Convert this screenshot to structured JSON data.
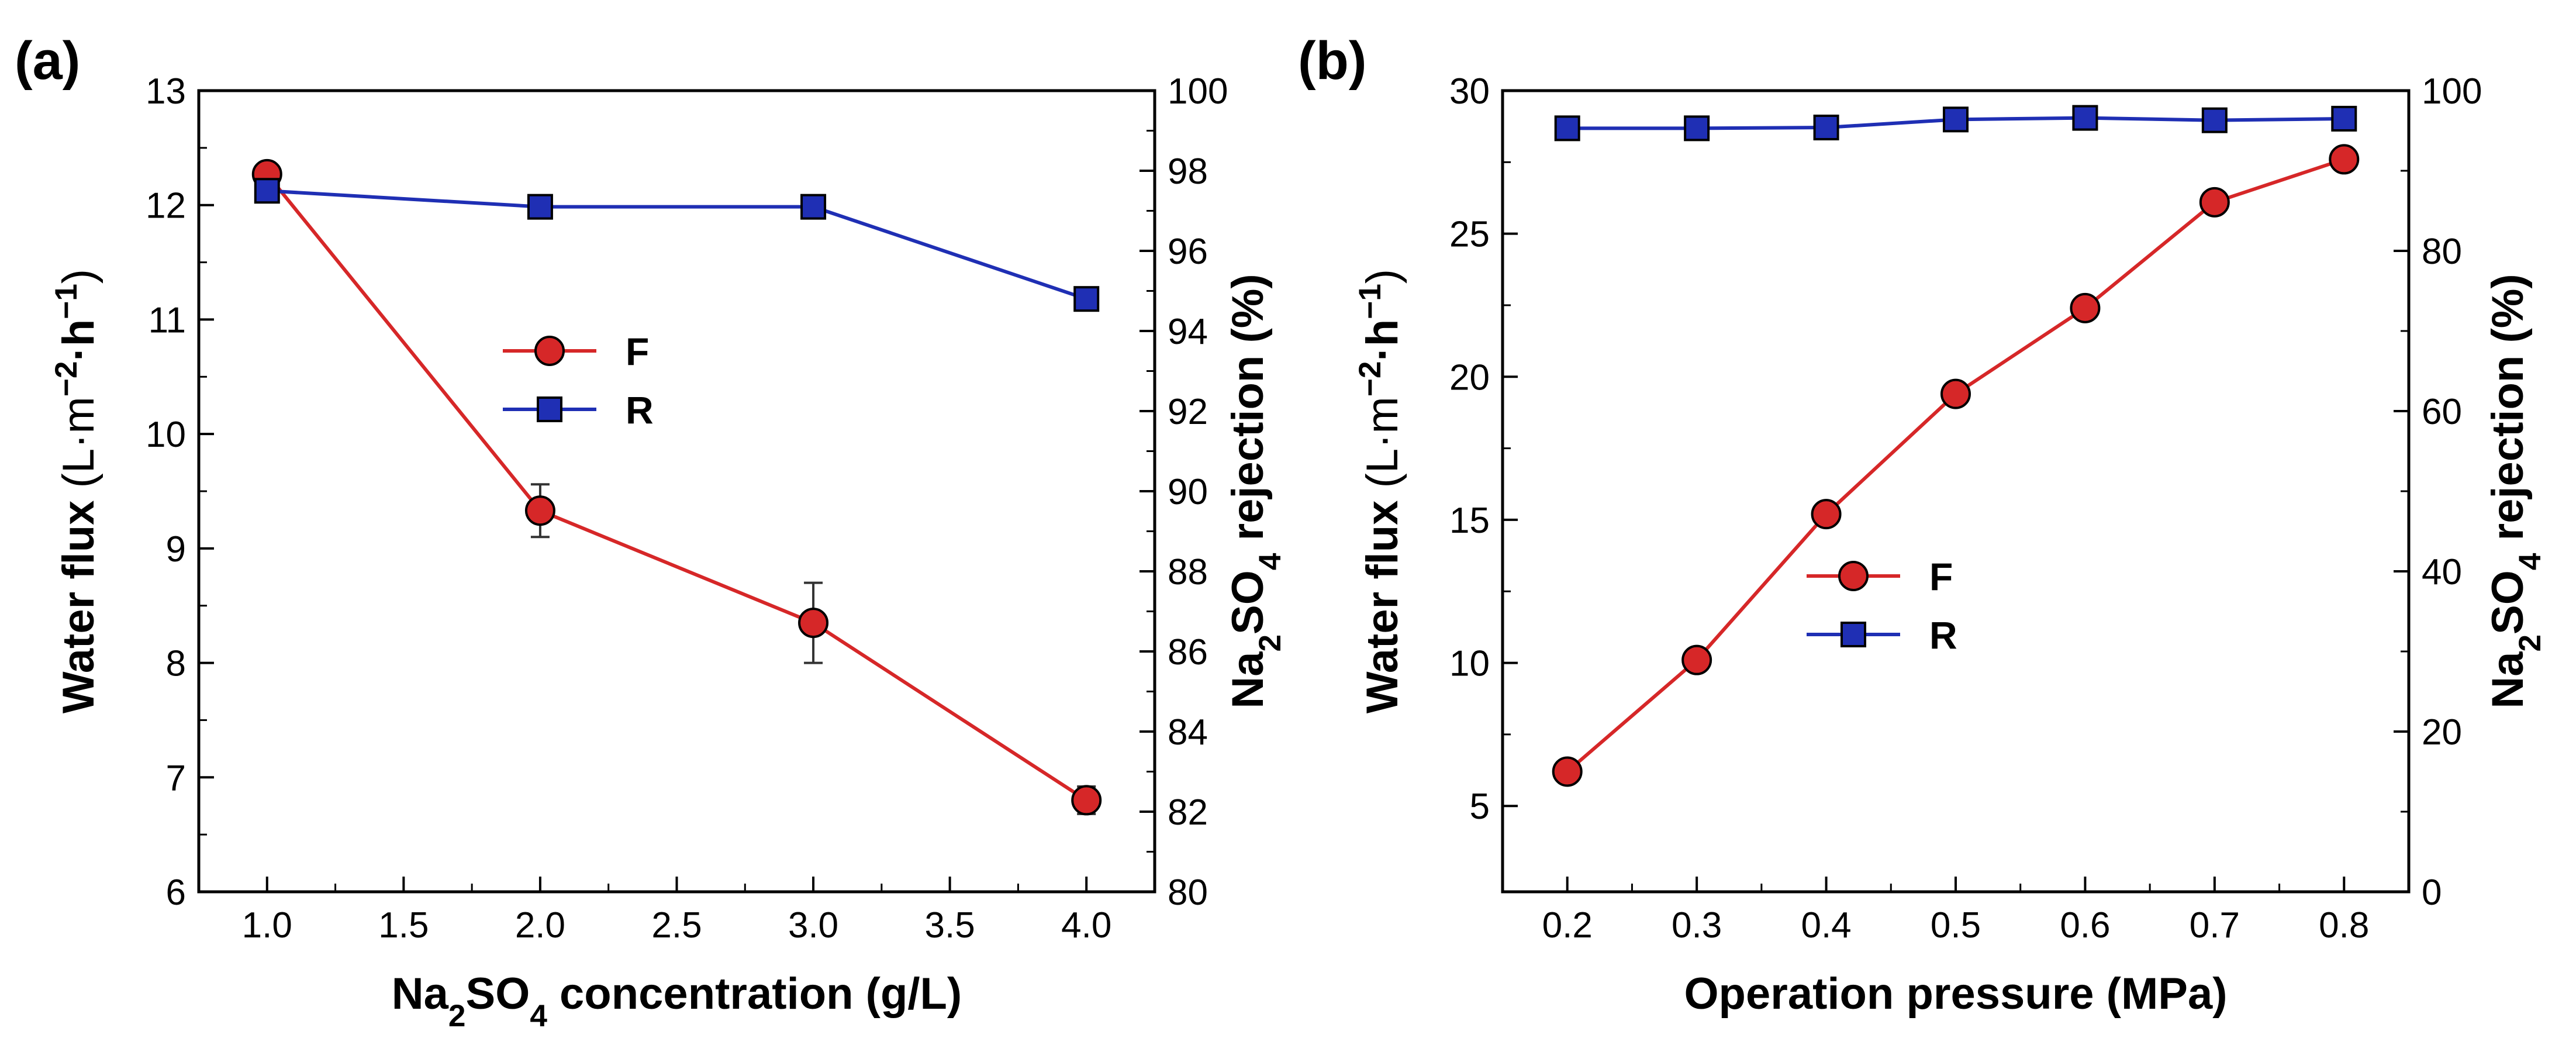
{
  "chart_data": [
    {
      "type": "line",
      "panel_label": "(a)",
      "xlabel": {
        "pre": "Na",
        "sub1": "2",
        "mid": "SO",
        "sub2": "4",
        "post": " concentration (g/L)"
      },
      "ylabel_left": {
        "text": "Water flux",
        "unit": "(L·m",
        "sup1": "−2",
        "mid": "·h",
        "sup2": "−1",
        "close": ")"
      },
      "ylabel_right": {
        "pre": "Na",
        "sub1": "2",
        "mid": "SO",
        "sub2": "4",
        "post": " rejection (%)"
      },
      "xlim": [
        0.75,
        4.25
      ],
      "xticks": [
        1.0,
        1.5,
        2.0,
        2.5,
        3.0,
        3.5,
        4.0
      ],
      "xtick_labels": [
        "1.0",
        "1.5",
        "2.0",
        "2.5",
        "3.0",
        "3.5",
        "4.0"
      ],
      "ylim_left": [
        6,
        13
      ],
      "yticks_left": [
        6,
        7,
        8,
        9,
        10,
        11,
        12,
        13
      ],
      "ytick_labels_left": [
        "6",
        "7",
        "8",
        "9",
        "10",
        "11",
        "12",
        "13"
      ],
      "ylim_right": [
        80,
        100
      ],
      "yticks_right": [
        80,
        82,
        84,
        86,
        88,
        90,
        92,
        94,
        96,
        98,
        100
      ],
      "ytick_labels_right": [
        "80",
        "82",
        "84",
        "86",
        "88",
        "90",
        "92",
        "94",
        "96",
        "98",
        "100"
      ],
      "legend_position": "center-left",
      "series": [
        {
          "name": "F",
          "axis": "left",
          "color": "#d62728",
          "marker": "circle",
          "x": [
            1.0,
            2.0,
            3.0,
            4.0
          ],
          "values": [
            12.27,
            9.33,
            8.35,
            6.8
          ],
          "error": [
            0.08,
            0.23,
            0.35,
            0.12
          ]
        },
        {
          "name": "R",
          "axis": "right",
          "color": "#1f2fb4",
          "marker": "square",
          "x": [
            1.0,
            2.0,
            3.0,
            4.0
          ],
          "values": [
            97.5,
            97.1,
            97.1,
            94.8
          ]
        }
      ]
    },
    {
      "type": "line",
      "panel_label": "(b)",
      "xlabel": {
        "pre": "Operation pressure (MPa)",
        "sub1": "",
        "mid": "",
        "sub2": "",
        "post": ""
      },
      "ylabel_left": {
        "text": "Water flux",
        "unit": "(L·m",
        "sup1": "−2",
        "mid": "·h",
        "sup2": "−1",
        "close": ")"
      },
      "ylabel_right": {
        "pre": "Na",
        "sub1": "2",
        "mid": "SO",
        "sub2": "4",
        "post": " rejection (%)"
      },
      "xlim": [
        0.15,
        0.85
      ],
      "xticks": [
        0.2,
        0.3,
        0.4,
        0.5,
        0.6,
        0.7,
        0.8
      ],
      "xtick_labels": [
        "0.2",
        "0.3",
        "0.4",
        "0.5",
        "0.6",
        "0.7",
        "0.8"
      ],
      "ylim_left": [
        2,
        30
      ],
      "yticks_left": [
        5,
        10,
        15,
        20,
        25,
        30
      ],
      "ytick_labels_left": [
        "5",
        "10",
        "15",
        "20",
        "25",
        "30"
      ],
      "ylim_right": [
        0,
        100
      ],
      "yticks_right": [
        0,
        20,
        40,
        60,
        80,
        100
      ],
      "ytick_labels_right": [
        "0",
        "20",
        "40",
        "60",
        "80",
        "100"
      ],
      "legend_position": "center-right",
      "series": [
        {
          "name": "F",
          "axis": "left",
          "color": "#d62728",
          "marker": "circle",
          "x": [
            0.2,
            0.3,
            0.4,
            0.5,
            0.6,
            0.7,
            0.8
          ],
          "values": [
            6.2,
            10.1,
            15.2,
            19.4,
            22.4,
            26.1,
            27.6
          ]
        },
        {
          "name": "R",
          "axis": "right",
          "color": "#1f2fb4",
          "marker": "square",
          "x": [
            0.2,
            0.3,
            0.4,
            0.5,
            0.6,
            0.7,
            0.8
          ],
          "values": [
            95.3,
            95.3,
            95.4,
            96.4,
            96.6,
            96.3,
            96.5
          ]
        }
      ]
    }
  ]
}
